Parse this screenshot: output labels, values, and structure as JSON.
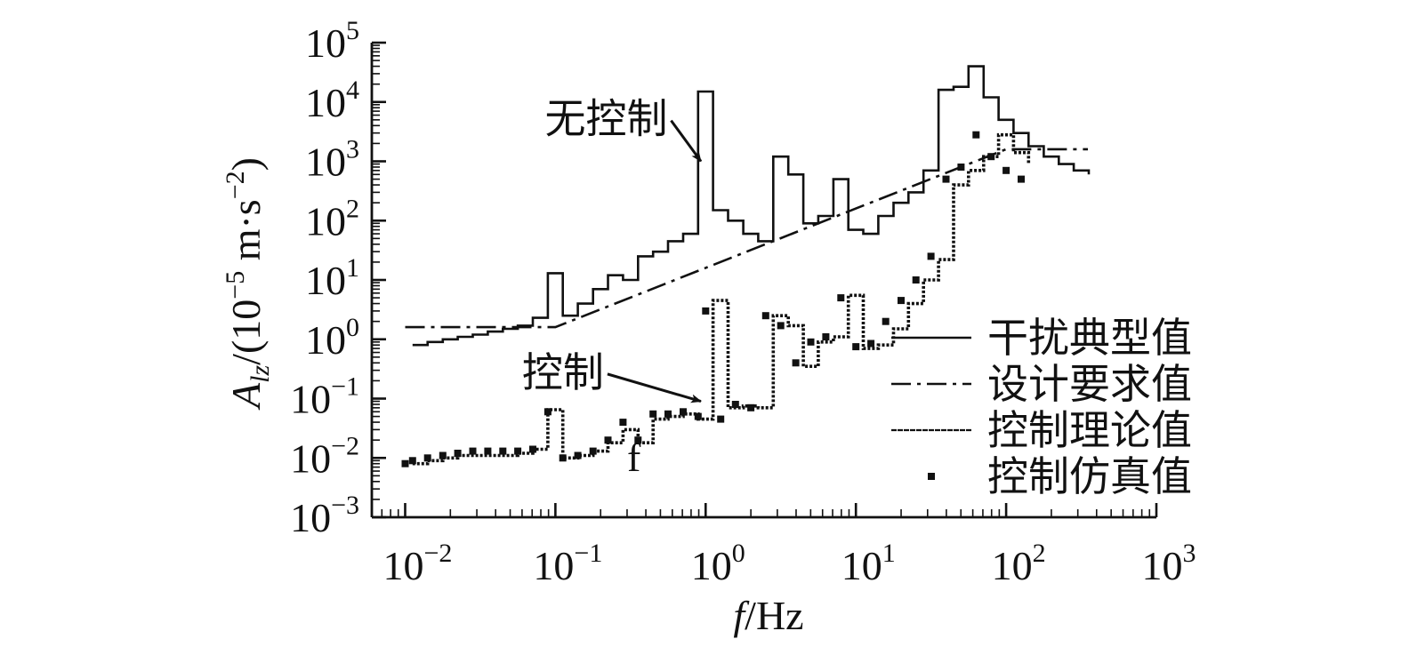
{
  "chart_data": {
    "type": "line",
    "x_scale": "log",
    "y_scale": "log",
    "xlim": [
      0.006,
      1000
    ],
    "ylim": [
      0.001,
      100000
    ],
    "x_ticks": [
      {
        "value": 0.01,
        "base": "10",
        "exp": "−2"
      },
      {
        "value": 0.1,
        "base": "10",
        "exp": "−1"
      },
      {
        "value": 1,
        "base": "10",
        "exp": "0"
      },
      {
        "value": 10,
        "base": "10",
        "exp": "1"
      },
      {
        "value": 100,
        "base": "10",
        "exp": "2"
      },
      {
        "value": 1000,
        "base": "10",
        "exp": "3"
      }
    ],
    "y_ticks": [
      {
        "value": 0.001,
        "base": "10",
        "exp": "−3"
      },
      {
        "value": 0.01,
        "base": "10",
        "exp": "−2"
      },
      {
        "value": 0.1,
        "base": "10",
        "exp": "−1"
      },
      {
        "value": 1,
        "base": "10",
        "exp": "0"
      },
      {
        "value": 10,
        "base": "10",
        "exp": "1"
      },
      {
        "value": 100,
        "base": "10",
        "exp": "2"
      },
      {
        "value": 1000,
        "base": "10",
        "exp": "3"
      },
      {
        "value": 10000,
        "base": "10",
        "exp": "4"
      },
      {
        "value": 100000,
        "base": "10",
        "exp": "5"
      }
    ],
    "xlabel": {
      "italic": "f",
      "rest": "/Hz"
    },
    "ylabel": {
      "italic": "A",
      "sub": "lz",
      "rest": "/(10",
      "exp1": "−5",
      "mid": " m·s",
      "exp2": "−2",
      "end": ")"
    },
    "grid": false,
    "legend": {
      "position": "right",
      "entries": [
        {
          "label": "干扰典型值",
          "style": "solid"
        },
        {
          "label": "设计要求值",
          "style": "dashdot"
        },
        {
          "label": "控制理论值",
          "style": "dashed"
        },
        {
          "label": "控制仿真值",
          "style": "marker"
        }
      ]
    },
    "annotations": [
      {
        "text": "无控制",
        "x": 0.085,
        "y": 3000,
        "arrow_to_x": 0.93,
        "arrow_to_y": 1000
      },
      {
        "text": "控制",
        "x": 0.06,
        "y": 0.16,
        "arrow_to_x": 0.93,
        "arrow_to_y": 0.09
      },
      {
        "text": "f",
        "x": 0.3,
        "y": 0.006
      }
    ],
    "series": [
      {
        "label": "干扰典型值",
        "style": "solid",
        "step": true,
        "x": [
          0.0112,
          0.0141,
          0.0178,
          0.0224,
          0.0282,
          0.0355,
          0.0447,
          0.0562,
          0.0708,
          0.0891,
          0.112,
          0.141,
          0.178,
          0.224,
          0.282,
          0.355,
          0.447,
          0.562,
          0.708,
          0.891,
          1.12,
          1.41,
          1.78,
          2.24,
          2.82,
          3.55,
          4.47,
          5.62,
          7.08,
          8.91,
          11.2,
          14.1,
          17.8,
          22.4,
          28.2,
          35.5,
          44.7,
          56.2,
          70.8,
          89.1,
          112,
          141,
          178,
          224,
          282,
          355
        ],
        "y": [
          0.8,
          0.9,
          1.0,
          1.1,
          1.2,
          1.35,
          1.5,
          1.7,
          2.3,
          13,
          2.5,
          4,
          7,
          12,
          10,
          25,
          30,
          45,
          60,
          15000,
          150,
          100,
          60,
          45,
          1200,
          600,
          90,
          120,
          500,
          70,
          60,
          120,
          200,
          300,
          700,
          16000,
          18000,
          40000,
          12000,
          5000,
          3000,
          1800,
          1200,
          900,
          700,
          600
        ]
      },
      {
        "label": "设计要求值",
        "style": "dashdot",
        "step": false,
        "x": [
          0.01,
          0.1,
          1,
          10,
          100,
          350
        ],
        "y": [
          1.6,
          1.6,
          16,
          160,
          1600,
          1600
        ]
      },
      {
        "label": "控制理论值",
        "style": "dashed",
        "step": true,
        "x": [
          0.0112,
          0.0141,
          0.0178,
          0.0224,
          0.0282,
          0.0355,
          0.0447,
          0.0562,
          0.0708,
          0.0891,
          0.112,
          0.141,
          0.178,
          0.224,
          0.282,
          0.355,
          0.447,
          0.562,
          0.708,
          0.891,
          1.12,
          1.41,
          1.78,
          2.24,
          2.82,
          3.55,
          4.47,
          5.62,
          7.08,
          8.91,
          11.2,
          14.1,
          17.8,
          22.4,
          28.2,
          35.5,
          44.7,
          56.2,
          70.8,
          89.1,
          112,
          141
        ],
        "y": [
          0.008,
          0.009,
          0.01,
          0.011,
          0.011,
          0.011,
          0.011,
          0.012,
          0.014,
          0.065,
          0.01,
          0.011,
          0.013,
          0.018,
          0.03,
          0.018,
          0.045,
          0.05,
          0.055,
          0.045,
          4.5,
          0.07,
          0.075,
          0.07,
          2.5,
          1.7,
          0.35,
          0.9,
          1.1,
          5.5,
          0.7,
          0.8,
          1.5,
          4,
          10,
          22,
          400,
          700,
          1200,
          2800,
          1400,
          900
        ]
      },
      {
        "label": "控制仿真值",
        "style": "marker",
        "step": false,
        "x": [
          0.01,
          0.0112,
          0.0141,
          0.0178,
          0.0224,
          0.0282,
          0.0355,
          0.0447,
          0.0562,
          0.0708,
          0.0891,
          0.112,
          0.141,
          0.178,
          0.224,
          0.282,
          0.355,
          0.447,
          0.562,
          0.708,
          0.891,
          1.0,
          1.26,
          1.58,
          2.0,
          2.51,
          3.16,
          3.98,
          5.01,
          6.31,
          7.94,
          10,
          12.6,
          15.8,
          20,
          25.1,
          31.6,
          39.8,
          50.1,
          63.1,
          79.4,
          100,
          126
        ],
        "y": [
          0.008,
          0.009,
          0.01,
          0.011,
          0.012,
          0.013,
          0.013,
          0.013,
          0.013,
          0.014,
          0.06,
          0.01,
          0.011,
          0.013,
          0.02,
          0.04,
          0.02,
          0.055,
          0.055,
          0.06,
          0.05,
          3.0,
          0.045,
          0.08,
          0.07,
          2.5,
          1.7,
          0.4,
          0.9,
          1.1,
          5.0,
          0.75,
          0.85,
          2.0,
          4.5,
          10,
          25,
          500,
          800,
          2800,
          1200,
          700,
          500
        ]
      }
    ]
  }
}
